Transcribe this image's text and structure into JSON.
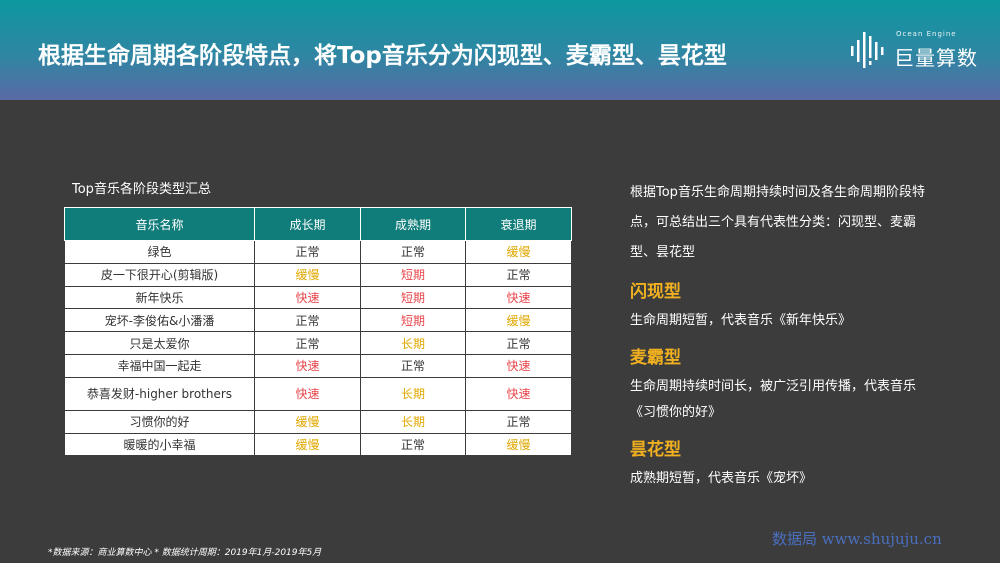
{
  "header": {
    "title": "根据生命周期各阶段特点，将Top音乐分为闪现型、麦霸型、昙花型",
    "logo_en": "Ocean Engine",
    "logo_cn": "巨量算数"
  },
  "table": {
    "title": "Top音乐各阶段类型汇总",
    "headers": [
      "音乐名称",
      "成长期",
      "成熟期",
      "衰退期"
    ],
    "rows": [
      {
        "name": "绿色",
        "grow": "正常",
        "mature": "正常",
        "decline": "缓慢"
      },
      {
        "name": "皮一下很开心(剪辑版)",
        "grow": "缓慢",
        "mature": "短期",
        "decline": "正常"
      },
      {
        "name": "新年快乐",
        "grow": "快速",
        "mature": "短期",
        "decline": "快速"
      },
      {
        "name": "宠坏-李俊佑&小潘潘",
        "grow": "正常",
        "mature": "短期",
        "decline": "缓慢"
      },
      {
        "name": "只是太爱你",
        "grow": "正常",
        "mature": "长期",
        "decline": "正常"
      },
      {
        "name": "幸福中国一起走",
        "grow": "快速",
        "mature": "正常",
        "decline": "快速"
      },
      {
        "name": "恭喜发财-higher brothers",
        "grow": "快速",
        "mature": "长期",
        "decline": "快速"
      },
      {
        "name": "习惯你的好",
        "grow": "缓慢",
        "mature": "长期",
        "decline": "正常"
      },
      {
        "name": "暖暖的小幸福",
        "grow": "缓慢",
        "mature": "正常",
        "decline": "缓慢"
      }
    ]
  },
  "status_colors": {
    "正常": "#333333",
    "缓慢": "#e0a800",
    "短期": "#e8454a",
    "快速": "#e8454a",
    "长期": "#e0a800"
  },
  "summary": {
    "intro": "根据Top音乐生命周期持续时间及各生命周期阶段特点，可总结出三个具有代表性分类：闪现型、麦霸型、昙花型",
    "categories": [
      {
        "title": "闪现型",
        "desc": "生命周期短暂，代表音乐《新年快乐》"
      },
      {
        "title": "麦霸型",
        "desc": "生命周期持续时间长，被广泛引用传播，代表音乐《习惯你的好》"
      },
      {
        "title": "昙花型",
        "desc": "成熟期短暂，代表音乐《宠坏》"
      }
    ]
  },
  "footnote": "*数据来源：商业算数中心 * 数据统计周期：2019年1月-2019年5月",
  "watermark": "数据局 www.shujuju.cn"
}
